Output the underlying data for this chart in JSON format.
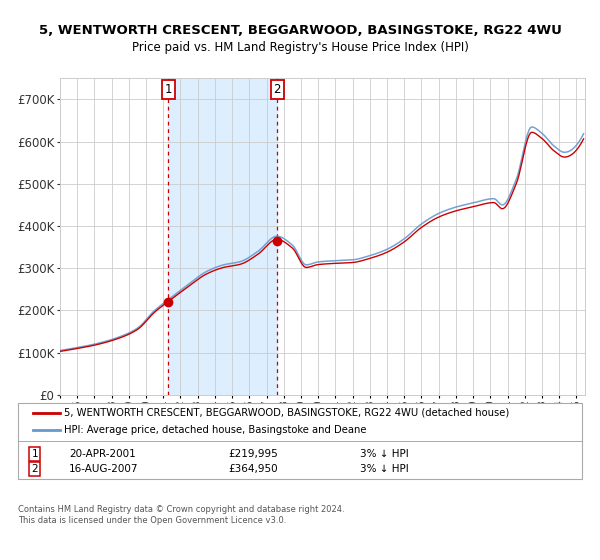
{
  "title": "5, WENTWORTH CRESCENT, BEGGARWOOD, BASINGSTOKE, RG22 4WU",
  "subtitle": "Price paid vs. HM Land Registry's House Price Index (HPI)",
  "legend_line1": "5, WENTWORTH CRESCENT, BEGGARWOOD, BASINGSTOKE, RG22 4WU (detached house)",
  "legend_line2": "HPI: Average price, detached house, Basingstoke and Deane",
  "footer": "Contains HM Land Registry data © Crown copyright and database right 2024.\nThis data is licensed under the Open Government Licence v3.0.",
  "sale1_date": "20-APR-2001",
  "sale1_price": "£219,995",
  "sale1_hpi": "3% ↓ HPI",
  "sale2_date": "16-AUG-2007",
  "sale2_price": "£364,950",
  "sale2_hpi": "3% ↓ HPI",
  "sale1_label": "1",
  "sale2_label": "2",
  "sale1_year": 2001.3,
  "sale1_value": 219995,
  "sale2_year": 2007.62,
  "sale2_value": 364950,
  "hpi_color": "#6699cc",
  "price_color": "#cc0000",
  "bg_color": "#ffffff",
  "shaded_color": "#ddeeff",
  "grid_color": "#cccccc",
  "box_color": "#cc0000",
  "ylim": [
    0,
    750000
  ],
  "xlim_start": 1995.0,
  "xlim_end": 2025.5
}
